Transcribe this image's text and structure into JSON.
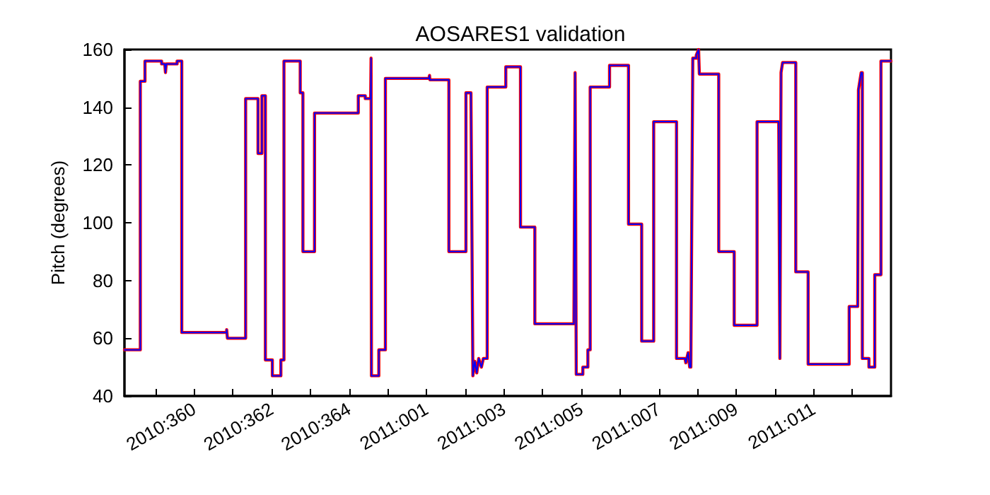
{
  "chart_data": {
    "type": "line",
    "title": "AOSARES1 validation",
    "ylabel": "Pitch (degrees)",
    "x": [
      "2010-12-24T04:48",
      "2010-12-24T14:38",
      "2010-12-24T14:38",
      "2010-12-24T17:31",
      "2010-12-24T17:31",
      "2010-12-25T03:50",
      "2010-12-25T03:50",
      "2010-12-25T05:46",
      "2010-12-25T06:14",
      "2010-12-25T06:43",
      "2010-12-25T13:26",
      "2010-12-25T13:26",
      "2010-12-25T16:19",
      "2010-12-25T16:19",
      "2010-12-26T20:10",
      "2010-12-26T20:10",
      "2010-12-26T20:38",
      "2010-12-27T07:55",
      "2010-12-27T07:55",
      "2010-12-27T15:36",
      "2010-12-27T15:36",
      "2010-12-27T18:00",
      "2010-12-27T18:00",
      "2010-12-27T20:10",
      "2010-12-27T20:10",
      "2010-12-28T00:29",
      "2010-12-28T00:29",
      "2010-12-28T05:46",
      "2010-12-28T05:46",
      "2010-12-28T07:41",
      "2010-12-28T07:41",
      "2010-12-28T17:46",
      "2010-12-28T17:46",
      "2010-12-28T19:26",
      "2010-12-28T19:26",
      "2010-12-29T02:38",
      "2010-12-29T02:38",
      "2010-12-30T05:46",
      "2010-12-30T05:46",
      "2010-12-30T10:05",
      "2010-12-30T10:05",
      "2010-12-30T13:26",
      "2010-12-30T13:41",
      "2010-12-30T13:55",
      "2010-12-30T18:29",
      "2010-12-30T18:29",
      "2010-12-30T22:34",
      "2010-12-30T22:34",
      "2011-01-01T01:41",
      "2011-01-01T01:55",
      "2011-01-01T02:10",
      "2011-01-01T13:55",
      "2011-01-01T13:55",
      "2011-01-02T00:29",
      "2011-01-02T00:29",
      "2011-01-02T03:36",
      "2011-01-02T04:48",
      "2011-01-02T06:00",
      "2011-01-02T07:12",
      "2011-01-02T08:24",
      "2011-01-02T10:05",
      "2011-01-02T11:17",
      "2011-01-02T13:41",
      "2011-01-02T13:41",
      "2011-01-03T01:12",
      "2011-01-03T01:12",
      "2011-01-03T10:19",
      "2011-01-03T10:19",
      "2011-01-03T19:12",
      "2011-01-03T19:12",
      "2011-01-04T19:26",
      "2011-01-04T20:10",
      "2011-01-04T20:53",
      "2011-01-05T00:58",
      "2011-01-05T00:58",
      "2011-01-05T04:05",
      "2011-01-05T04:05",
      "2011-01-05T05:31",
      "2011-01-05T05:31",
      "2011-01-05T17:31",
      "2011-01-05T17:31",
      "2011-01-06T05:17",
      "2011-01-06T05:17",
      "2011-01-06T13:26",
      "2011-01-06T13:26",
      "2011-01-06T20:53",
      "2011-01-06T20:53",
      "2011-01-07T11:02",
      "2011-01-07T11:02",
      "2011-01-07T16:19",
      "2011-01-07T16:48",
      "2011-01-07T18:14",
      "2011-01-07T19:12",
      "2011-01-07T19:55",
      "2011-01-07T21:07",
      "2011-01-07T23:17",
      "2011-01-07T23:17",
      "2011-01-08T00:43",
      "2011-01-08T01:12",
      "2011-01-08T13:12",
      "2011-01-08T13:12",
      "2011-01-08T22:48",
      "2011-01-08T22:48",
      "2011-01-09T12:58",
      "2011-01-09T12:58",
      "2011-01-10T02:24",
      "2011-01-10T03:07",
      "2011-01-10T03:50",
      "2011-01-10T04:48",
      "2011-01-10T12:58",
      "2011-01-10T12:58",
      "2011-01-10T20:38",
      "2011-01-10T20:38",
      "2011-01-11T22:05",
      "2011-01-11T22:05",
      "2011-01-12T03:22",
      "2011-01-12T03:50",
      "2011-01-12T05:31",
      "2011-01-12T06:14",
      "2011-01-12T06:14",
      "2011-01-12T10:19",
      "2011-01-12T10:19",
      "2011-01-12T13:55",
      "2011-01-12T13:55",
      "2011-01-12T17:46",
      "2011-01-12T17:46",
      "2011-01-13T00:00"
    ],
    "series": [
      {
        "color": "#ff0000",
        "values": [
          56,
          56,
          149,
          149,
          156,
          156,
          155,
          155,
          152,
          155,
          155,
          156,
          156,
          62,
          62,
          63,
          60,
          60,
          143,
          143,
          124,
          124,
          144,
          144,
          52.5,
          52.5,
          47,
          47,
          52.5,
          52.5,
          156,
          156,
          145,
          145,
          90,
          90,
          138,
          138,
          144,
          144,
          143,
          143,
          157,
          47,
          47,
          56,
          56,
          150,
          150,
          151,
          149.5,
          149.5,
          90,
          90,
          145,
          145,
          47,
          52,
          48,
          53,
          50,
          53,
          53,
          147,
          147,
          154,
          154,
          98.5,
          98.5,
          65,
          65,
          152,
          47.5,
          47.5,
          50,
          50,
          56,
          56,
          147,
          147,
          154.5,
          154.5,
          99.5,
          99.5,
          59,
          59,
          135,
          135,
          53,
          53,
          51.5,
          55,
          50,
          50,
          157,
          157,
          158,
          160,
          151.5,
          151.5,
          90,
          90,
          64.5,
          64.5,
          135,
          135,
          53,
          152,
          155.5,
          155.5,
          83,
          83,
          51,
          51,
          71,
          71,
          146,
          152,
          152,
          53,
          53,
          50,
          50,
          82,
          82,
          156,
          156
        ]
      },
      {
        "color": "#0000ff",
        "values": [
          56,
          56,
          149,
          149,
          156,
          156,
          155,
          155,
          152,
          155,
          155,
          156,
          156,
          62,
          62,
          63,
          60,
          60,
          143,
          143,
          124,
          124,
          144,
          144,
          52.5,
          52.5,
          47,
          47,
          52.5,
          52.5,
          156,
          156,
          145,
          145,
          90,
          90,
          138,
          138,
          144,
          144,
          143,
          143,
          157,
          47,
          47,
          56,
          56,
          150,
          150,
          151,
          149.5,
          149.5,
          90,
          90,
          145,
          145,
          47,
          52,
          48,
          53,
          50,
          53,
          53,
          147,
          147,
          154,
          154,
          98.5,
          98.5,
          65,
          65,
          152,
          47.5,
          47.5,
          50,
          50,
          56,
          56,
          147,
          147,
          154.5,
          154.5,
          99.5,
          99.5,
          59,
          59,
          135,
          135,
          53,
          53,
          51.5,
          55,
          50,
          50,
          157,
          157,
          158,
          160,
          151.5,
          151.5,
          90,
          90,
          64.5,
          64.5,
          135,
          135,
          53,
          152,
          155.5,
          155.5,
          83,
          83,
          51,
          51,
          71,
          71,
          146,
          152,
          152,
          53,
          53,
          50,
          50,
          82,
          82,
          156,
          156
        ]
      }
    ],
    "xlim": [
      "2010-12-24T04:48",
      "2011-01-13T00:00"
    ],
    "xticks": [
      {
        "value": "2010-12-25",
        "label": null
      },
      {
        "value": "2010-12-26",
        "label": "2010:360"
      },
      {
        "value": "2010-12-27",
        "label": null
      },
      {
        "value": "2010-12-28",
        "label": "2010:362"
      },
      {
        "value": "2010-12-29",
        "label": null
      },
      {
        "value": "2010-12-30",
        "label": "2010:364"
      },
      {
        "value": "2010-12-31",
        "label": null
      },
      {
        "value": "2011-01-01",
        "label": "2011:001"
      },
      {
        "value": "2011-01-02",
        "label": null
      },
      {
        "value": "2011-01-03",
        "label": "2011:003"
      },
      {
        "value": "2011-01-04",
        "label": null
      },
      {
        "value": "2011-01-05",
        "label": "2011:005"
      },
      {
        "value": "2011-01-06",
        "label": null
      },
      {
        "value": "2011-01-07",
        "label": "2011:007"
      },
      {
        "value": "2011-01-08",
        "label": null
      },
      {
        "value": "2011-01-09",
        "label": "2011:009"
      },
      {
        "value": "2011-01-10",
        "label": null
      },
      {
        "value": "2011-01-11",
        "label": "2011:011"
      },
      {
        "value": "2011-01-12",
        "label": null
      }
    ],
    "ylim": [
      40,
      160
    ],
    "yticks": [
      40,
      60,
      80,
      100,
      120,
      140,
      160
    ],
    "grid": false,
    "marker": "none",
    "line_style": "solid"
  }
}
